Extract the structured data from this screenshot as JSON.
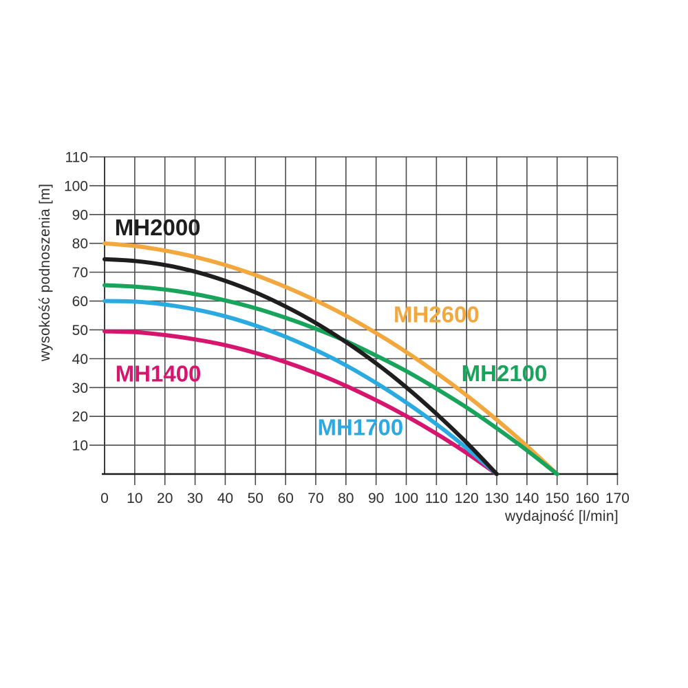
{
  "page": {
    "background_color": "#ffffff"
  },
  "chart_data": {
    "type": "line",
    "title": "",
    "xlabel": "wydajność [l/min]",
    "ylabel": "wysokość podnoszenia [m]",
    "xlim": [
      0,
      170
    ],
    "ylim": [
      0,
      110
    ],
    "xticks": [
      0,
      10,
      20,
      30,
      40,
      50,
      60,
      70,
      80,
      90,
      100,
      110,
      120,
      130,
      140,
      150,
      160,
      170
    ],
    "yticks": [
      10,
      20,
      30,
      40,
      50,
      60,
      70,
      80,
      90,
      100,
      110
    ],
    "grid": true,
    "grid_color": "#4a4a4a",
    "axis_color": "#1a1a1a",
    "tick_label_color": "#2e2e2e",
    "legend_position": "inline-curve-labels",
    "series": [
      {
        "name": "MH2600",
        "color": "#F2A83E",
        "label_anchor": {
          "x": 110,
          "y": 55.2
        },
        "points": [
          [
            0,
            80
          ],
          [
            10,
            79.1
          ],
          [
            20,
            77.5
          ],
          [
            30,
            75.3
          ],
          [
            40,
            72.5
          ],
          [
            50,
            69.0
          ],
          [
            60,
            64.9
          ],
          [
            70,
            60.2
          ],
          [
            80,
            54.9
          ],
          [
            90,
            48.9
          ],
          [
            100,
            42.3
          ],
          [
            110,
            35.1
          ],
          [
            120,
            27.3
          ],
          [
            130,
            18.8
          ],
          [
            140,
            9.7
          ],
          [
            150,
            0
          ]
        ]
      },
      {
        "name": "MH2100",
        "color": "#19A45B",
        "label_anchor": {
          "x": 132.5,
          "y": 34.8
        },
        "points": [
          [
            0,
            65.5
          ],
          [
            10,
            65.0
          ],
          [
            20,
            64.0
          ],
          [
            30,
            62.4
          ],
          [
            40,
            60.2
          ],
          [
            50,
            57.5
          ],
          [
            60,
            54.2
          ],
          [
            70,
            50.4
          ],
          [
            80,
            46.1
          ],
          [
            90,
            41.1
          ],
          [
            100,
            35.7
          ],
          [
            110,
            29.6
          ],
          [
            120,
            23.1
          ],
          [
            130,
            15.9
          ],
          [
            140,
            8.2
          ],
          [
            150,
            0
          ]
        ]
      },
      {
        "name": "MH1400",
        "color": "#D6156F",
        "label_anchor": {
          "x": 17.8,
          "y": 34.7
        },
        "points": [
          [
            0,
            49.5
          ],
          [
            10,
            49.2
          ],
          [
            20,
            48.2
          ],
          [
            30,
            46.7
          ],
          [
            40,
            44.7
          ],
          [
            50,
            42.0
          ],
          [
            60,
            38.8
          ],
          [
            70,
            35.0
          ],
          [
            80,
            30.6
          ],
          [
            90,
            25.6
          ],
          [
            100,
            20.1
          ],
          [
            110,
            14.0
          ],
          [
            120,
            7.3
          ],
          [
            130,
            0
          ]
        ]
      },
      {
        "name": "MH1700",
        "color": "#2BAAE1",
        "label_anchor": {
          "x": 84.8,
          "y": 16.1
        },
        "points": [
          [
            0,
            60.0
          ],
          [
            10,
            59.8
          ],
          [
            20,
            58.8
          ],
          [
            30,
            57.1
          ],
          [
            40,
            54.7
          ],
          [
            50,
            51.5
          ],
          [
            60,
            47.6
          ],
          [
            70,
            43.0
          ],
          [
            80,
            37.7
          ],
          [
            90,
            31.6
          ],
          [
            100,
            24.8
          ],
          [
            110,
            17.3
          ],
          [
            120,
            9.0
          ],
          [
            130,
            0
          ]
        ]
      },
      {
        "name": "MH2000",
        "color": "#1E1E1E",
        "label_anchor": {
          "x": 17.6,
          "y": 85.4
        },
        "points": [
          [
            0,
            74.5
          ],
          [
            10,
            73.9
          ],
          [
            20,
            72.5
          ],
          [
            30,
            70.2
          ],
          [
            40,
            67.0
          ],
          [
            50,
            63.0
          ],
          [
            60,
            58.1
          ],
          [
            70,
            52.4
          ],
          [
            80,
            45.8
          ],
          [
            90,
            38.4
          ],
          [
            100,
            30.1
          ],
          [
            110,
            20.9
          ],
          [
            120,
            10.9
          ],
          [
            130,
            0
          ]
        ]
      }
    ]
  }
}
